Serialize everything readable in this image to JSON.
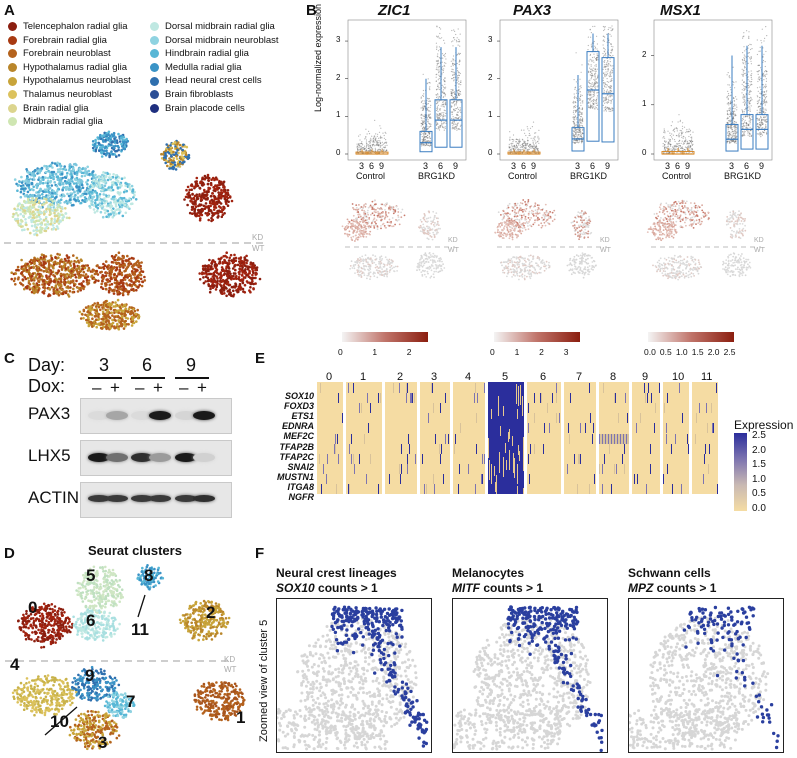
{
  "panels": {
    "a": "A",
    "b": "B",
    "c": "C",
    "d": "D",
    "e": "E",
    "f": "F"
  },
  "colors": {
    "accent_blue": "#2a3f9f",
    "box_blue": "#3a7cc0",
    "box_orange": "#d88a2a",
    "heatmap_low": "#f5dca3",
    "heatmap_high": "#2b2e9c",
    "umap_red": "#a2230f"
  },
  "panel_a": {
    "legend_left": [
      {
        "label": "Telencephalon radial glia",
        "color": "#8b1e0f"
      },
      {
        "label": "Forebrain radial glia",
        "color": "#a83a12"
      },
      {
        "label": "Forebrain neuroblast",
        "color": "#b4621d"
      },
      {
        "label": "Hypothalamus radial glia",
        "color": "#b9862a"
      },
      {
        "label": "Hypothalamus neuroblast",
        "color": "#c8a43a"
      },
      {
        "label": "Thalamus neuroblast",
        "color": "#dcc25d"
      },
      {
        "label": "Brain radial glia",
        "color": "#dcd58e"
      },
      {
        "label": "Midbrain radial glia",
        "color": "#cfe6b2"
      }
    ],
    "legend_right": [
      {
        "label": "Dorsal midbrain radial glia",
        "color": "#bfe8e2"
      },
      {
        "label": "Dorsal midbrain neuroblast",
        "color": "#8fd3e1"
      },
      {
        "label": "Hindbrain radial glia",
        "color": "#58b7d6"
      },
      {
        "label": "Medulla radial glia",
        "color": "#3a93c6"
      },
      {
        "label": "Head neural crest cells",
        "color": "#2f6fae"
      },
      {
        "label": "Brain fibroblasts",
        "color": "#2b4f96"
      },
      {
        "label": "Brain placode cells",
        "color": "#1f2f7f"
      }
    ],
    "kd_label": "KD",
    "wt_label": "WT"
  },
  "panel_b": {
    "y_axis_label": "Log-normalized expression",
    "genes": [
      {
        "name": "ZIC1",
        "yticks": [
          "0",
          "1",
          "2",
          "3"
        ],
        "control_medians": [
          0,
          0,
          0
        ],
        "kd_medians": [
          0.3,
          0.9,
          0.9
        ]
      },
      {
        "name": "PAX3",
        "yticks": [
          "0",
          "1",
          "2",
          "3"
        ],
        "control_medians": [
          0,
          0,
          0
        ],
        "kd_medians": [
          0.4,
          1.7,
          1.6
        ]
      },
      {
        "name": "MSX1",
        "yticks": [
          "0",
          "1",
          "2"
        ],
        "control_medians": [
          0,
          0,
          0
        ],
        "kd_medians": [
          0.3,
          0.5,
          0.5
        ]
      }
    ],
    "days": [
      "3",
      "6",
      "9"
    ],
    "group_labels": [
      "Control",
      "BRG1KD"
    ],
    "kd_label": "KD",
    "wt_label": "WT",
    "colorbars": [
      {
        "ticks": [
          "0",
          "1",
          "2"
        ]
      },
      {
        "ticks": [
          "0",
          "1",
          "2",
          "3"
        ]
      },
      {
        "ticks": [
          "0.0",
          "0.5",
          "1.0",
          "1.5",
          "2.0",
          "2.5"
        ]
      }
    ]
  },
  "panel_c": {
    "day_label": "Day:",
    "dox_label": "Dox:",
    "days": [
      "3",
      "6",
      "9"
    ],
    "dox_states": [
      "–",
      "+",
      "–",
      "+",
      "–",
      "+"
    ],
    "blots": [
      {
        "protein": "PAX3",
        "intensities": [
          0.05,
          0.3,
          0.05,
          0.95,
          0.08,
          0.95
        ]
      },
      {
        "protein": "LHX5",
        "intensities": [
          0.95,
          0.55,
          0.85,
          0.35,
          0.95,
          0.1
        ]
      },
      {
        "protein": "ACTIN",
        "intensities": [
          0.8,
          0.8,
          0.8,
          0.8,
          0.8,
          0.85
        ]
      }
    ]
  },
  "panel_d": {
    "title": "Seurat clusters",
    "clusters": [
      "0",
      "1",
      "2",
      "3",
      "4",
      "5",
      "6",
      "7",
      "8",
      "9",
      "10",
      "11"
    ],
    "kd_label": "KD",
    "wt_label": "WT"
  },
  "panel_e": {
    "columns": [
      "0",
      "1",
      "2",
      "3",
      "4",
      "5",
      "6",
      "7",
      "8",
      "9",
      "10",
      "11"
    ],
    "genes": [
      "SOX10",
      "FOXD3",
      "ETS1",
      "EDNRA",
      "MEF2C",
      "TFAP2B",
      "TFAP2C",
      "SNAI2",
      "MUSTN1",
      "ITGA8",
      "NGFR"
    ],
    "legend_title": "Expression",
    "legend_ticks": [
      "2.5",
      "2.0",
      "1.5",
      "1.0",
      "0.5",
      "0.0"
    ]
  },
  "panel_f": {
    "y_label": "Zoomed view of cluster 5",
    "plots": [
      {
        "title": "Neural crest lineages",
        "gene": "SOX10",
        "suffix": " counts > 1"
      },
      {
        "title": "Melanocytes",
        "gene": "MITF",
        "suffix": " counts > 1"
      },
      {
        "title": "Schwann cells",
        "gene": "MPZ",
        "suffix": " counts > 1"
      }
    ]
  }
}
